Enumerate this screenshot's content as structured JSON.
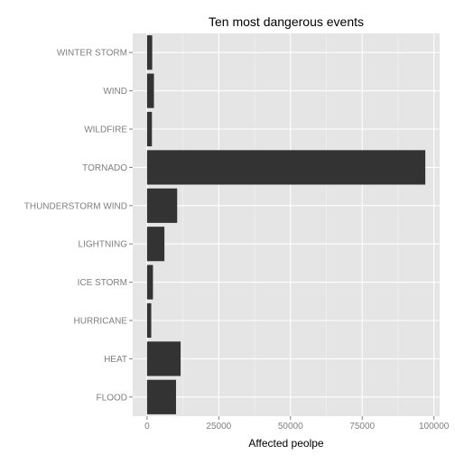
{
  "chart_data": {
    "type": "bar",
    "orientation": "horizontal",
    "title": "Ten most dangerous events",
    "xlabel": "Affected peolpe",
    "ylabel": "",
    "categories": [
      "FLOOD",
      "HEAT",
      "HURRICANE",
      "ICE STORM",
      "LIGHTNING",
      "THUNDERSTORM WIND",
      "TORNADO",
      "WILDFIRE",
      "WIND",
      "WINTER STORM"
    ],
    "values": [
      10100,
      11700,
      1460,
      2060,
      6050,
      10500,
      97000,
      1700,
      2400,
      1800
    ],
    "xlim": [
      -5000,
      102000
    ],
    "x_ticks": [
      0,
      25000,
      50000,
      75000,
      100000
    ],
    "x_tick_labels": [
      "0",
      "25000",
      "50000",
      "75000",
      "100000"
    ],
    "grid": true,
    "colors": {
      "panel_background": "#e5e5e5",
      "grid_major": "#ffffff",
      "grid_minor": "#f2f2f2",
      "bar_fill": "#333333",
      "tick_label": "#7f7f7f",
      "tick_mark": "#7f7f7f"
    }
  }
}
